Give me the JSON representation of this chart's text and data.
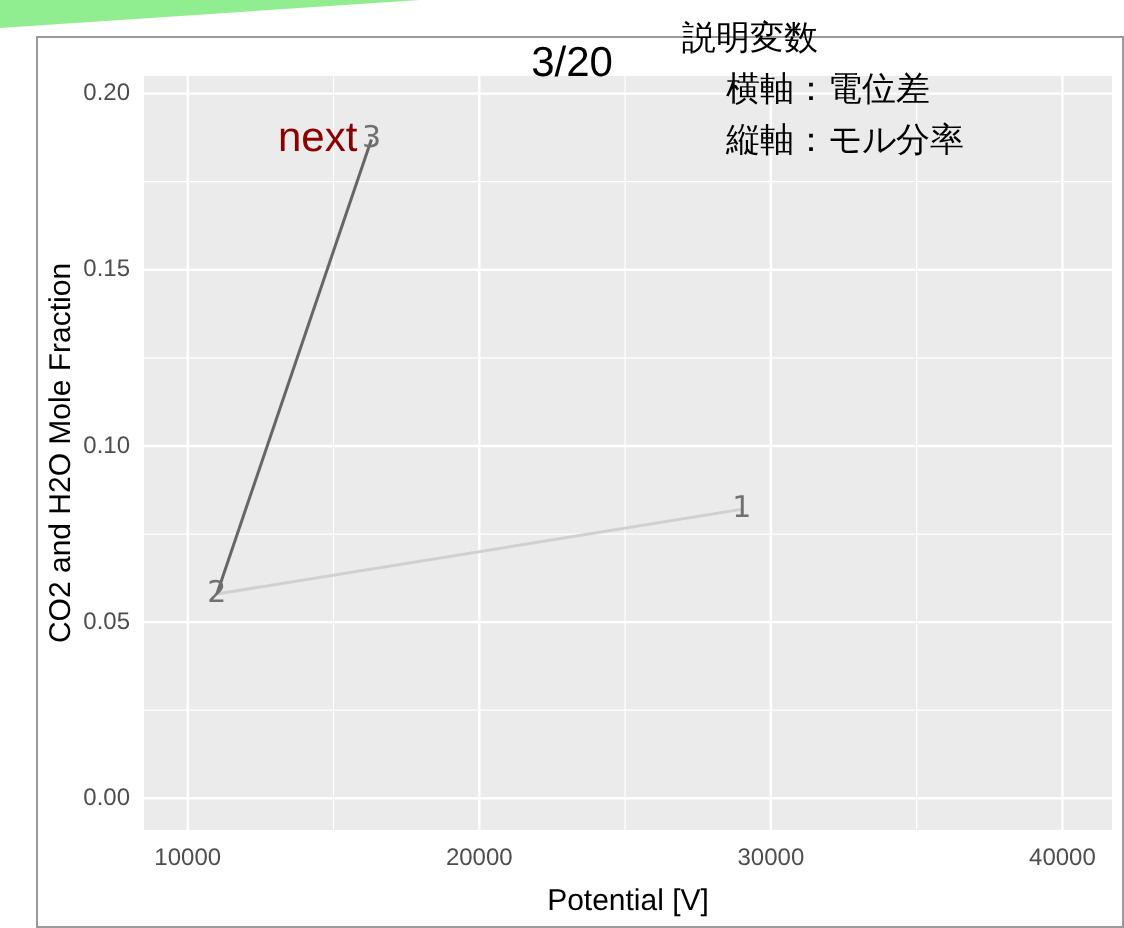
{
  "chart_data": {
    "type": "line",
    "title": "3/20",
    "xlabel": "Potential [V]",
    "ylabel": "CO2 and H2O Mole Fraction",
    "annotations": [
      "説明変数",
      "横軸：電位差",
      "縦軸：モル分率",
      {
        "text": "1",
        "x": 29000,
        "y": 0.082
      },
      {
        "text": "2",
        "x": 11000,
        "y": 0.058
      },
      {
        "text": "3",
        "x": 16300,
        "y": 0.187
      },
      {
        "text": "next",
        "x": 16300,
        "y": 0.187
      }
    ],
    "series": [
      {
        "color": "#d0d0d0",
        "x": [
          29000,
          11000
        ],
        "values": [
          0.082,
          0.058
        ]
      },
      {
        "color": "#666666",
        "x": [
          11000,
          16300
        ],
        "values": [
          0.058,
          0.187
        ]
      }
    ],
    "xlim": [
      8500,
      41700
    ],
    "xticks": [
      10000,
      20000,
      30000,
      40000
    ],
    "ylim": [
      -0.009,
      0.205
    ],
    "yticks": [
      {
        "value": 0,
        "label": "0.00"
      },
      {
        "value": 0.05,
        "label": "0.05"
      },
      {
        "value": 0.1,
        "label": "0.10"
      },
      {
        "value": 0.15,
        "label": "0.15"
      },
      {
        "value": 0.2,
        "label": "0.20"
      }
    ],
    "grid": true,
    "legend": false,
    "marker": "none",
    "line_style": "solid"
  }
}
